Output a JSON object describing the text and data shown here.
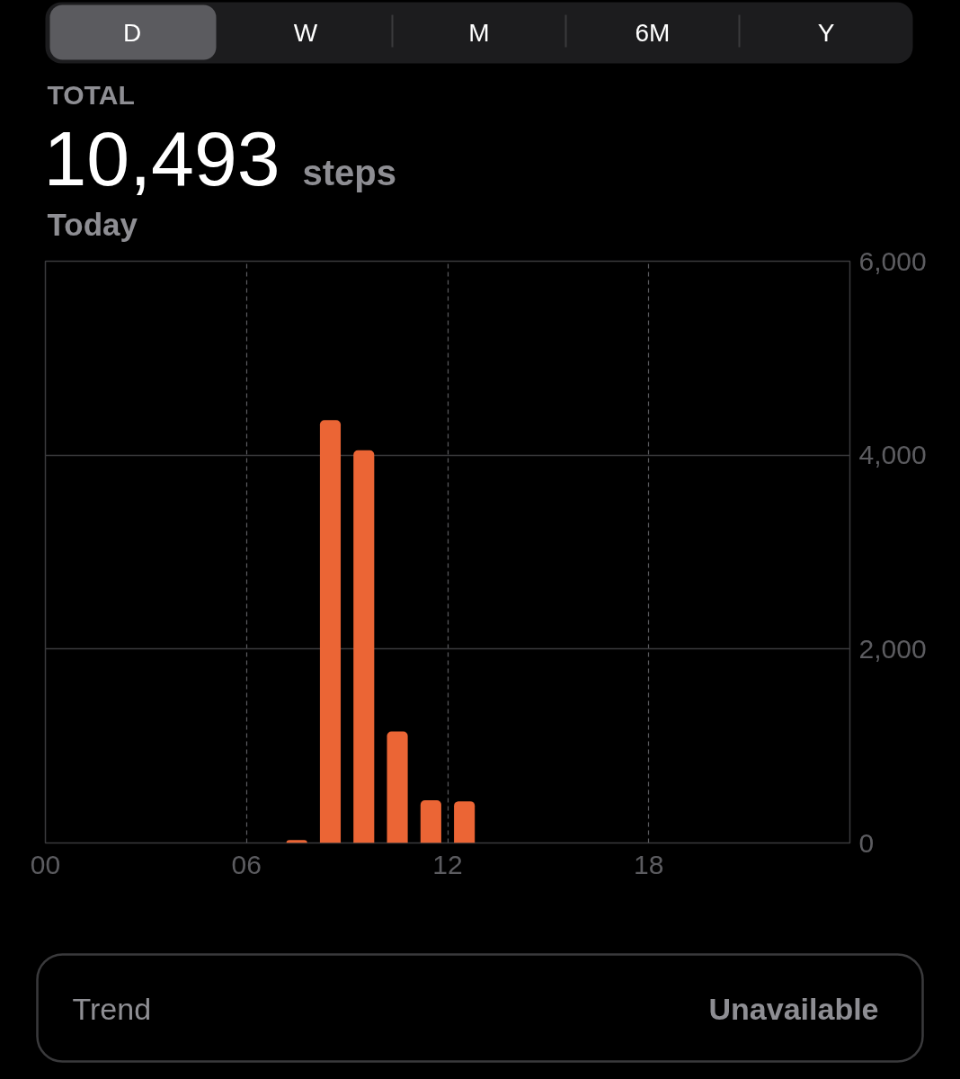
{
  "chart_data": {
    "type": "bar",
    "title": "TOTAL",
    "annotations": [
      "D",
      "W",
      "M",
      "6M",
      "Y",
      "10,493",
      "steps",
      "Today",
      "Trend",
      "Unavailable"
    ],
    "x": [
      7.5,
      8.5,
      9.5,
      10.5,
      11.5,
      12.5
    ],
    "values": [
      30,
      4360,
      4050,
      1150,
      440,
      430
    ],
    "color": "#eb6535",
    "xlim": [
      0,
      24
    ],
    "xticks": [
      {
        "value": 0,
        "label": "00"
      },
      {
        "value": 6,
        "label": "06"
      },
      {
        "value": 12,
        "label": "12"
      },
      {
        "value": 18,
        "label": "18"
      }
    ],
    "ylim": [
      0,
      6000
    ],
    "yticks": [
      0,
      {
        "value": 2000,
        "label": "2,000"
      },
      {
        "value": 4000,
        "label": "4,000"
      },
      {
        "value": 6000,
        "label": "6,000"
      }
    ],
    "grid": true
  }
}
